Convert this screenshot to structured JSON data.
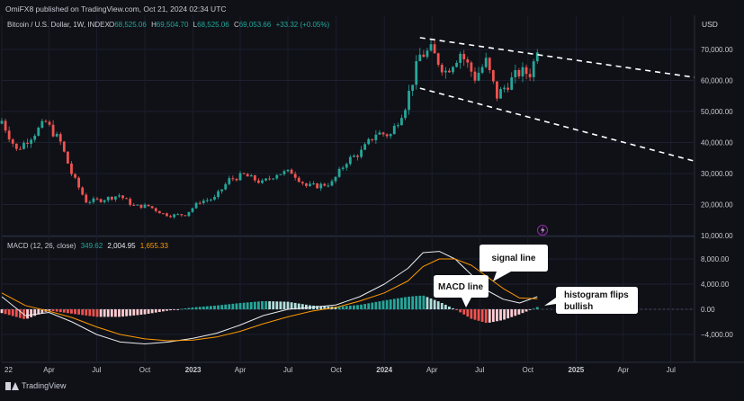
{
  "header": {
    "publisher": "OmiFX8 published on TradingView.com, Oct 21, 2024 02:34 UTC",
    "instrument": "Bitcoin / U.S. Dollar, 1W, INDEX",
    "o_label": "O",
    "o_value": "68,525.06",
    "h_label": "H",
    "h_value": "69,504.70",
    "l_label": "L",
    "l_value": "68,525.06",
    "c_label": "C",
    "c_value": "69,053.66",
    "change": "+33.32 (+0.05%)",
    "currency": "USD"
  },
  "macd_legend": {
    "label": "MACD (12, 26, close)",
    "hist_value": "349.62",
    "macd_value": "2,004.95",
    "signal_value": "1,655.33"
  },
  "footer": {
    "brand": "TradingView"
  },
  "annotations": {
    "signal_line": "signal line",
    "macd_line": "MACD line",
    "histogram_1": "histogram flips",
    "histogram_2": "bullish"
  },
  "colors": {
    "up": "#26a69a",
    "down": "#ef5350",
    "macd_line": "#e8eaed",
    "signal_line": "#ff9800",
    "hist_up_strong": "#26a69a",
    "hist_up_weak": "#b2dfdb",
    "hist_down_strong": "#ef5350",
    "hist_down_weak": "#ffcdd2",
    "trendline": "#ffffff",
    "lightning": "#9c27b0"
  },
  "chart_data": [
    {
      "type": "candlestick",
      "title": "Bitcoin / U.S. Dollar, 1W, INDEX",
      "timeframe": "1W",
      "xlim": [
        "2022-01-01",
        "2025-08-15"
      ],
      "ylim": [
        10000,
        80000
      ],
      "y_ticks": [
        10000,
        20000,
        30000,
        40000,
        50000,
        60000,
        70000
      ],
      "y_tick_labels": [
        "10,000.00",
        "20,000.00",
        "30,000.00",
        "40,000.00",
        "50,000.00",
        "60,000.00",
        "70,000.00"
      ],
      "x_ticks": [
        "2022-01-01",
        "2022-04-01",
        "2022-07-01",
        "2022-10-01",
        "2023-01-01",
        "2023-04-01",
        "2023-07-01",
        "2023-10-01",
        "2024-01-01",
        "2024-04-01",
        "2024-07-01",
        "2024-10-01",
        "2025-01-01",
        "2025-04-01",
        "2025-07-01"
      ],
      "x_tick_labels": [
        "22",
        "Apr",
        "Jul",
        "Oct",
        "2023",
        "Apr",
        "Jul",
        "Oct",
        "2024",
        "Apr",
        "Jul",
        "Oct",
        "2025",
        "Apr",
        "Jul"
      ],
      "series": [
        {
          "dates": [
            "2022-01-01",
            "2022-01-29",
            "2022-02-26",
            "2022-03-26",
            "2022-04-23",
            "2022-05-14",
            "2022-06-11",
            "2022-07-09",
            "2022-08-13",
            "2022-09-10",
            "2022-10-08",
            "2022-11-05",
            "2022-11-19",
            "2022-12-17",
            "2023-01-14",
            "2023-02-11",
            "2023-03-11",
            "2023-04-08",
            "2023-05-13",
            "2023-06-10",
            "2023-07-08",
            "2023-08-05",
            "2023-08-26",
            "2023-09-23",
            "2023-10-21",
            "2023-11-18",
            "2023-12-16",
            "2024-01-13",
            "2024-02-10",
            "2024-03-09",
            "2024-03-30",
            "2024-04-27",
            "2024-05-25",
            "2024-06-22",
            "2024-07-13",
            "2024-08-03",
            "2024-08-24",
            "2024-09-14",
            "2024-10-05",
            "2024-10-19"
          ],
          "values": [
            47000,
            37500,
            42000,
            46500,
            40000,
            30000,
            21000,
            21500,
            23000,
            19500,
            19500,
            17000,
            16500,
            16800,
            21000,
            22000,
            28000,
            29500,
            27000,
            30000,
            30500,
            26000,
            26000,
            27000,
            34000,
            37000,
            43000,
            42500,
            52000,
            68000,
            69500,
            63000,
            69000,
            61000,
            66000,
            55000,
            59000,
            62500,
            62500,
            69053.66
          ]
        }
      ],
      "trendlines": [
        {
          "name": "upper",
          "points": [
            [
              "2024-03-09",
              73800
            ],
            [
              "2025-08-15",
              61000
            ]
          ]
        },
        {
          "name": "lower",
          "points": [
            [
              "2024-03-09",
              57500
            ],
            [
              "2025-08-15",
              34000
            ]
          ]
        }
      ]
    },
    {
      "type": "bar",
      "title": "MACD (12, 26, close)",
      "ylim": [
        -6000,
        10000
      ],
      "y_ticks": [
        -4000,
        0,
        4000,
        8000
      ],
      "y_tick_labels": [
        "−4,000.00",
        "0.00",
        "4,000.00",
        "8,000.00"
      ],
      "x": [
        "2022-01-01",
        "2022-02-15",
        "2022-04-01",
        "2022-05-15",
        "2022-07-01",
        "2022-08-15",
        "2022-10-01",
        "2022-11-15",
        "2023-01-01",
        "2023-02-15",
        "2023-04-01",
        "2023-05-15",
        "2023-07-01",
        "2023-08-15",
        "2023-10-01",
        "2023-11-15",
        "2024-01-01",
        "2024-02-15",
        "2024-03-15",
        "2024-04-15",
        "2024-05-15",
        "2024-06-15",
        "2024-07-15",
        "2024-08-15",
        "2024-09-15",
        "2024-10-19"
      ],
      "series": [
        {
          "name": "MACD",
          "values": [
            2000,
            -1000,
            -500,
            -2000,
            -4000,
            -5200,
            -5500,
            -5200,
            -4600,
            -3800,
            -2500,
            -1000,
            0,
            300,
            700,
            2000,
            4000,
            6500,
            9000,
            9200,
            8000,
            5500,
            3000,
            1600,
            1000,
            2004.95
          ]
        },
        {
          "name": "Signal",
          "values": [
            2600,
            600,
            -300,
            -1300,
            -2800,
            -4000,
            -4700,
            -5000,
            -4900,
            -4400,
            -3500,
            -2300,
            -1200,
            -300,
            300,
            1300,
            2600,
            4500,
            6800,
            8000,
            8000,
            7000,
            5200,
            3300,
            1800,
            1655.33
          ]
        }
      ],
      "histogram": [
        -600,
        -1600,
        -200,
        -700,
        -1200,
        -1200,
        -800,
        -200,
        300,
        600,
        1000,
        1300,
        1200,
        600,
        400,
        700,
        1400,
        2000,
        2200,
        1200,
        0,
        -1500,
        -2200,
        -1700,
        -800,
        349.62
      ]
    }
  ]
}
